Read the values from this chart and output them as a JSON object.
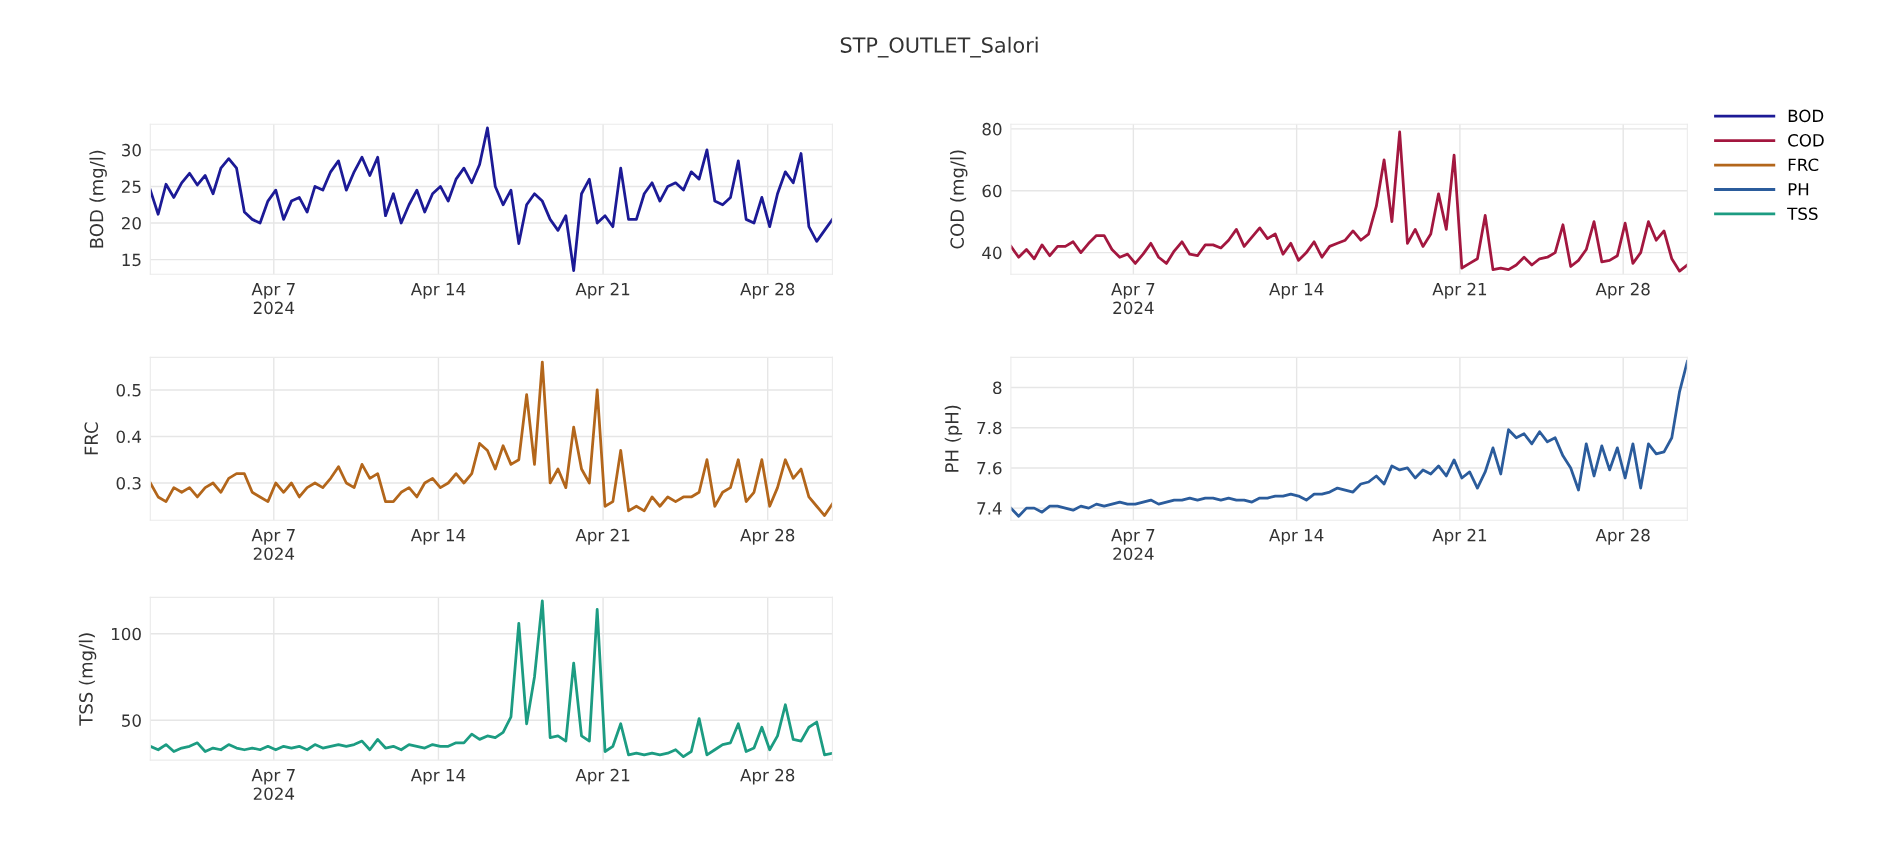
{
  "chart_data": [
    {
      "type": "line",
      "title": "STP_OUTLET_Salori",
      "ylabel": "BOD (mg/l)",
      "grid": true,
      "legend": "right",
      "xlim": [
        "2024-04-01T18:00",
        "2024-04-30T18:00"
      ],
      "xticks": [
        {
          "value": "2024-04-07",
          "label": "Apr 7\n2024"
        },
        {
          "value": "2024-04-14",
          "label": "Apr 14"
        },
        {
          "value": "2024-04-21",
          "label": "Apr 21"
        },
        {
          "value": "2024-04-28",
          "label": "Apr 28"
        }
      ],
      "ylim": [
        13,
        33.5
      ],
      "yticks": [
        15,
        20,
        25,
        30
      ],
      "x": [
        "2024-04-01T18:00",
        "2024-04-02T02:00",
        "2024-04-02T10:00",
        "2024-04-02T18:00",
        "2024-04-03T02:00",
        "2024-04-03T10:00",
        "2024-04-03T18:00",
        "2024-04-04T02:00",
        "2024-04-04T10:00",
        "2024-04-04T18:00",
        "2024-04-05T02:00",
        "2024-04-05T10:00",
        "2024-04-05T18:00",
        "2024-04-06T02:00",
        "2024-04-06T10:00",
        "2024-04-06T18:00",
        "2024-04-07T02:00",
        "2024-04-07T10:00",
        "2024-04-07T18:00",
        "2024-04-08T02:00",
        "2024-04-08T10:00",
        "2024-04-08T18:00",
        "2024-04-09T02:00",
        "2024-04-09T10:00",
        "2024-04-09T18:00",
        "2024-04-10T02:00",
        "2024-04-10T10:00",
        "2024-04-10T18:00",
        "2024-04-11T02:00",
        "2024-04-11T10:00",
        "2024-04-11T18:00",
        "2024-04-12T02:00",
        "2024-04-12T10:00",
        "2024-04-12T18:00",
        "2024-04-13T02:00",
        "2024-04-13T10:00",
        "2024-04-13T18:00",
        "2024-04-14T02:00",
        "2024-04-14T10:00",
        "2024-04-14T18:00",
        "2024-04-15T02:00",
        "2024-04-15T10:00",
        "2024-04-15T18:00",
        "2024-04-16T02:00",
        "2024-04-16T10:00",
        "2024-04-16T18:00",
        "2024-04-17T02:00",
        "2024-04-17T10:00",
        "2024-04-17T18:00",
        "2024-04-18T02:00",
        "2024-04-18T10:00",
        "2024-04-18T18:00",
        "2024-04-19T02:00",
        "2024-04-19T10:00",
        "2024-04-19T18:00",
        "2024-04-20T02:00",
        "2024-04-20T10:00",
        "2024-04-20T18:00",
        "2024-04-21T02:00",
        "2024-04-21T10:00",
        "2024-04-21T18:00",
        "2024-04-22T02:00",
        "2024-04-22T10:00",
        "2024-04-22T18:00",
        "2024-04-23T02:00",
        "2024-04-23T10:00",
        "2024-04-23T18:00",
        "2024-04-24T02:00",
        "2024-04-24T10:00",
        "2024-04-24T18:00",
        "2024-04-25T02:00",
        "2024-04-25T10:00",
        "2024-04-25T18:00",
        "2024-04-26T02:00",
        "2024-04-26T10:00",
        "2024-04-26T18:00",
        "2024-04-27T02:00",
        "2024-04-27T10:00",
        "2024-04-27T18:00",
        "2024-04-28T02:00",
        "2024-04-28T10:00",
        "2024-04-28T18:00",
        "2024-04-29T02:00",
        "2024-04-29T10:00",
        "2024-04-29T18:00",
        "2024-04-30T02:00",
        "2024-04-30T10:00",
        "2024-04-30T18:00"
      ],
      "series": [
        {
          "name": "BOD",
          "color": "#1c1a96",
          "values": [
            24.5,
            21.2,
            25.3,
            23.5,
            25.5,
            26.8,
            25.2,
            26.5,
            24.0,
            27.5,
            28.8,
            27.5,
            21.5,
            20.5,
            20.0,
            23.0,
            24.5,
            20.5,
            23.0,
            23.5,
            21.5,
            25.0,
            24.5,
            27.0,
            28.5,
            24.5,
            27.0,
            29.0,
            26.5,
            29.0,
            21.0,
            24.0,
            20.0,
            22.5,
            24.5,
            21.5,
            24.0,
            25.0,
            23.0,
            26.0,
            27.5,
            25.5,
            28.0,
            33.0,
            25.0,
            22.5,
            24.5,
            17.2,
            22.5,
            24.0,
            23.0,
            20.5,
            19.0,
            21.0,
            13.5,
            24.0,
            26.0,
            20.0,
            21.0,
            19.5,
            27.5,
            20.5,
            20.5,
            24.0,
            25.5,
            23.0,
            25.0,
            25.5,
            24.5,
            27.0,
            26.0,
            30.0,
            23.0,
            22.5,
            23.5,
            28.5,
            20.5,
            20.0,
            23.5,
            19.5,
            24.0,
            27.0,
            25.5,
            29.5,
            19.5,
            17.5,
            19.0,
            20.5
          ]
        }
      ]
    },
    {
      "type": "line",
      "ylabel": "COD (mg/l)",
      "grid": true,
      "legend": "right",
      "xlim": [
        "2024-04-01T18:00",
        "2024-04-30T18:00"
      ],
      "xticks": [
        {
          "value": "2024-04-07",
          "label": "Apr 7\n2024"
        },
        {
          "value": "2024-04-14",
          "label": "Apr 14"
        },
        {
          "value": "2024-04-21",
          "label": "Apr 21"
        },
        {
          "value": "2024-04-28",
          "label": "Apr 28"
        }
      ],
      "ylim": [
        33,
        81.5
      ],
      "yticks": [
        40,
        60,
        80
      ],
      "x": [
        "2024-04-01T18:00",
        "2024-04-02T02:00",
        "2024-04-02T10:00",
        "2024-04-02T18:00",
        "2024-04-03T02:00",
        "2024-04-03T10:00",
        "2024-04-03T18:00",
        "2024-04-04T02:00",
        "2024-04-04T10:00",
        "2024-04-04T18:00",
        "2024-04-05T02:00",
        "2024-04-05T10:00",
        "2024-04-05T18:00",
        "2024-04-06T02:00",
        "2024-04-06T10:00",
        "2024-04-06T18:00",
        "2024-04-07T02:00",
        "2024-04-07T10:00",
        "2024-04-07T18:00",
        "2024-04-08T02:00",
        "2024-04-08T10:00",
        "2024-04-08T18:00",
        "2024-04-09T02:00",
        "2024-04-09T10:00",
        "2024-04-09T18:00",
        "2024-04-10T02:00",
        "2024-04-10T10:00",
        "2024-04-10T18:00",
        "2024-04-11T02:00",
        "2024-04-11T10:00",
        "2024-04-11T18:00",
        "2024-04-12T02:00",
        "2024-04-12T10:00",
        "2024-04-12T18:00",
        "2024-04-13T02:00",
        "2024-04-13T10:00",
        "2024-04-13T18:00",
        "2024-04-14T02:00",
        "2024-04-14T10:00",
        "2024-04-14T18:00",
        "2024-04-15T02:00",
        "2024-04-15T10:00",
        "2024-04-15T18:00",
        "2024-04-16T02:00",
        "2024-04-16T10:00",
        "2024-04-16T18:00",
        "2024-04-17T02:00",
        "2024-04-17T10:00",
        "2024-04-17T18:00",
        "2024-04-18T02:00",
        "2024-04-18T10:00",
        "2024-04-18T18:00",
        "2024-04-19T02:00",
        "2024-04-19T10:00",
        "2024-04-19T18:00",
        "2024-04-20T02:00",
        "2024-04-20T10:00",
        "2024-04-20T18:00",
        "2024-04-21T02:00",
        "2024-04-21T10:00",
        "2024-04-21T18:00",
        "2024-04-22T02:00",
        "2024-04-22T10:00",
        "2024-04-22T18:00",
        "2024-04-23T02:00",
        "2024-04-23T10:00",
        "2024-04-23T18:00",
        "2024-04-24T02:00",
        "2024-04-24T10:00",
        "2024-04-24T18:00",
        "2024-04-25T02:00",
        "2024-04-25T10:00",
        "2024-04-25T18:00",
        "2024-04-26T02:00",
        "2024-04-26T10:00",
        "2024-04-26T18:00",
        "2024-04-27T02:00",
        "2024-04-27T10:00",
        "2024-04-27T18:00",
        "2024-04-28T02:00",
        "2024-04-28T10:00",
        "2024-04-28T18:00",
        "2024-04-29T02:00",
        "2024-04-29T10:00",
        "2024-04-29T18:00",
        "2024-04-30T02:00",
        "2024-04-30T10:00",
        "2024-04-30T18:00"
      ],
      "series": [
        {
          "name": "COD",
          "color": "#a3173f",
          "values": [
            42,
            38.5,
            41,
            38,
            42.5,
            39,
            42,
            42,
            43.5,
            40,
            43,
            45.5,
            45.5,
            41,
            38.5,
            39.5,
            36.5,
            39.5,
            43,
            38.5,
            36.5,
            40.5,
            43.5,
            39.5,
            39,
            42.5,
            42.5,
            41.5,
            44,
            47.5,
            42,
            45,
            48,
            44.5,
            46,
            39.5,
            43,
            37.5,
            40,
            43.5,
            38.5,
            42,
            43,
            44,
            47,
            44,
            46,
            55,
            70,
            50,
            79,
            43,
            47.5,
            42,
            46,
            59,
            47.5,
            71.5,
            35,
            36.5,
            38,
            52,
            34.5,
            35,
            34.5,
            36,
            38.5,
            36,
            38,
            38.5,
            40,
            49,
            35.5,
            37.5,
            41,
            50,
            37,
            37.5,
            39,
            49.5,
            36.5,
            40,
            50,
            44,
            47,
            38,
            34,
            36
          ]
        }
      ]
    },
    {
      "type": "line",
      "ylabel": "FRC",
      "grid": true,
      "legend": "right",
      "xlim": [
        "2024-04-01T18:00",
        "2024-04-30T18:00"
      ],
      "xticks": [
        {
          "value": "2024-04-07",
          "label": "Apr 7\n2024"
        },
        {
          "value": "2024-04-14",
          "label": "Apr 14"
        },
        {
          "value": "2024-04-21",
          "label": "Apr 21"
        },
        {
          "value": "2024-04-28",
          "label": "Apr 28"
        }
      ],
      "ylim": [
        0.22,
        0.57
      ],
      "yticks": [
        0.3,
        0.4,
        0.5
      ],
      "x": [
        "2024-04-01T18:00",
        "2024-04-02T02:00",
        "2024-04-02T10:00",
        "2024-04-02T18:00",
        "2024-04-03T02:00",
        "2024-04-03T10:00",
        "2024-04-03T18:00",
        "2024-04-04T02:00",
        "2024-04-04T10:00",
        "2024-04-04T18:00",
        "2024-04-05T02:00",
        "2024-04-05T10:00",
        "2024-04-05T18:00",
        "2024-04-06T02:00",
        "2024-04-06T10:00",
        "2024-04-06T18:00",
        "2024-04-07T02:00",
        "2024-04-07T10:00",
        "2024-04-07T18:00",
        "2024-04-08T02:00",
        "2024-04-08T10:00",
        "2024-04-08T18:00",
        "2024-04-09T02:00",
        "2024-04-09T10:00",
        "2024-04-09T18:00",
        "2024-04-10T02:00",
        "2024-04-10T10:00",
        "2024-04-10T18:00",
        "2024-04-11T02:00",
        "2024-04-11T10:00",
        "2024-04-11T18:00",
        "2024-04-12T02:00",
        "2024-04-12T10:00",
        "2024-04-12T18:00",
        "2024-04-13T02:00",
        "2024-04-13T10:00",
        "2024-04-13T18:00",
        "2024-04-14T02:00",
        "2024-04-14T10:00",
        "2024-04-14T18:00",
        "2024-04-15T02:00",
        "2024-04-15T10:00",
        "2024-04-15T18:00",
        "2024-04-16T02:00",
        "2024-04-16T10:00",
        "2024-04-16T18:00",
        "2024-04-17T02:00",
        "2024-04-17T10:00",
        "2024-04-17T18:00",
        "2024-04-18T02:00",
        "2024-04-18T10:00",
        "2024-04-18T18:00",
        "2024-04-19T02:00",
        "2024-04-19T10:00",
        "2024-04-19T18:00",
        "2024-04-20T02:00",
        "2024-04-20T10:00",
        "2024-04-20T18:00",
        "2024-04-21T02:00",
        "2024-04-21T10:00",
        "2024-04-21T18:00",
        "2024-04-22T02:00",
        "2024-04-22T10:00",
        "2024-04-22T18:00",
        "2024-04-23T02:00",
        "2024-04-23T10:00",
        "2024-04-23T18:00",
        "2024-04-24T02:00",
        "2024-04-24T10:00",
        "2024-04-24T18:00",
        "2024-04-25T02:00",
        "2024-04-25T10:00",
        "2024-04-25T18:00",
        "2024-04-26T02:00",
        "2024-04-26T10:00",
        "2024-04-26T18:00",
        "2024-04-27T02:00",
        "2024-04-27T10:00",
        "2024-04-27T18:00",
        "2024-04-28T02:00",
        "2024-04-28T10:00",
        "2024-04-28T18:00",
        "2024-04-29T02:00",
        "2024-04-29T10:00",
        "2024-04-29T18:00",
        "2024-04-30T02:00",
        "2024-04-30T10:00",
        "2024-04-30T18:00"
      ],
      "series": [
        {
          "name": "FRC",
          "color": "#b3661b",
          "values": [
            0.3,
            0.27,
            0.26,
            0.29,
            0.28,
            0.29,
            0.27,
            0.29,
            0.3,
            0.28,
            0.31,
            0.32,
            0.32,
            0.28,
            0.27,
            0.26,
            0.3,
            0.28,
            0.3,
            0.27,
            0.29,
            0.3,
            0.29,
            0.31,
            0.335,
            0.3,
            0.29,
            0.34,
            0.31,
            0.32,
            0.26,
            0.26,
            0.28,
            0.29,
            0.27,
            0.3,
            0.31,
            0.29,
            0.3,
            0.32,
            0.3,
            0.32,
            0.385,
            0.37,
            0.33,
            0.38,
            0.34,
            0.35,
            0.49,
            0.34,
            0.56,
            0.3,
            0.33,
            0.29,
            0.42,
            0.33,
            0.3,
            0.5,
            0.25,
            0.26,
            0.37,
            0.24,
            0.25,
            0.24,
            0.27,
            0.25,
            0.27,
            0.26,
            0.27,
            0.27,
            0.28,
            0.35,
            0.25,
            0.28,
            0.29,
            0.35,
            0.26,
            0.28,
            0.35,
            0.25,
            0.29,
            0.35,
            0.31,
            0.33,
            0.27,
            0.25,
            0.23,
            0.255
          ]
        }
      ]
    },
    {
      "type": "line",
      "ylabel": "PH (pH)",
      "grid": true,
      "legend": "right",
      "xlim": [
        "2024-04-01T18:00",
        "2024-04-30T18:00"
      ],
      "xticks": [
        {
          "value": "2024-04-07",
          "label": "Apr 7\n2024"
        },
        {
          "value": "2024-04-14",
          "label": "Apr 14"
        },
        {
          "value": "2024-04-21",
          "label": "Apr 21"
        },
        {
          "value": "2024-04-28",
          "label": "Apr 28"
        }
      ],
      "ylim": [
        7.34,
        8.15
      ],
      "yticks": [
        7.4,
        7.6,
        7.8,
        8
      ],
      "x": [
        "2024-04-01T18:00",
        "2024-04-02T02:00",
        "2024-04-02T10:00",
        "2024-04-02T18:00",
        "2024-04-03T02:00",
        "2024-04-03T10:00",
        "2024-04-03T18:00",
        "2024-04-04T02:00",
        "2024-04-04T10:00",
        "2024-04-04T18:00",
        "2024-04-05T02:00",
        "2024-04-05T10:00",
        "2024-04-05T18:00",
        "2024-04-06T02:00",
        "2024-04-06T10:00",
        "2024-04-06T18:00",
        "2024-04-07T02:00",
        "2024-04-07T10:00",
        "2024-04-07T18:00",
        "2024-04-08T02:00",
        "2024-04-08T10:00",
        "2024-04-08T18:00",
        "2024-04-09T02:00",
        "2024-04-09T10:00",
        "2024-04-09T18:00",
        "2024-04-10T02:00",
        "2024-04-10T10:00",
        "2024-04-10T18:00",
        "2024-04-11T02:00",
        "2024-04-11T10:00",
        "2024-04-11T18:00",
        "2024-04-12T02:00",
        "2024-04-12T10:00",
        "2024-04-12T18:00",
        "2024-04-13T02:00",
        "2024-04-13T10:00",
        "2024-04-13T18:00",
        "2024-04-14T02:00",
        "2024-04-14T10:00",
        "2024-04-14T18:00",
        "2024-04-15T02:00",
        "2024-04-15T10:00",
        "2024-04-15T18:00",
        "2024-04-16T02:00",
        "2024-04-16T10:00",
        "2024-04-16T18:00",
        "2024-04-17T02:00",
        "2024-04-17T10:00",
        "2024-04-17T18:00",
        "2024-04-18T02:00",
        "2024-04-18T10:00",
        "2024-04-18T18:00",
        "2024-04-19T02:00",
        "2024-04-19T10:00",
        "2024-04-19T18:00",
        "2024-04-20T02:00",
        "2024-04-20T10:00",
        "2024-04-20T18:00",
        "2024-04-21T02:00",
        "2024-04-21T10:00",
        "2024-04-21T18:00",
        "2024-04-22T02:00",
        "2024-04-22T10:00",
        "2024-04-22T18:00",
        "2024-04-23T02:00",
        "2024-04-23T10:00",
        "2024-04-23T18:00",
        "2024-04-24T02:00",
        "2024-04-24T10:00",
        "2024-04-24T18:00",
        "2024-04-25T02:00",
        "2024-04-25T10:00",
        "2024-04-25T18:00",
        "2024-04-26T02:00",
        "2024-04-26T10:00",
        "2024-04-26T18:00",
        "2024-04-27T02:00",
        "2024-04-27T10:00",
        "2024-04-27T18:00",
        "2024-04-28T02:00",
        "2024-04-28T10:00",
        "2024-04-28T18:00",
        "2024-04-29T02:00",
        "2024-04-29T10:00",
        "2024-04-29T18:00",
        "2024-04-30T02:00",
        "2024-04-30T10:00",
        "2024-04-30T18:00"
      ],
      "series": [
        {
          "name": "PH",
          "color": "#2b5c9c",
          "values": [
            7.4,
            7.36,
            7.4,
            7.4,
            7.38,
            7.41,
            7.41,
            7.4,
            7.39,
            7.41,
            7.4,
            7.42,
            7.41,
            7.42,
            7.43,
            7.42,
            7.42,
            7.43,
            7.44,
            7.42,
            7.43,
            7.44,
            7.44,
            7.45,
            7.44,
            7.45,
            7.45,
            7.44,
            7.45,
            7.44,
            7.44,
            7.43,
            7.45,
            7.45,
            7.46,
            7.46,
            7.47,
            7.46,
            7.44,
            7.47,
            7.47,
            7.48,
            7.5,
            7.49,
            7.48,
            7.52,
            7.53,
            7.56,
            7.52,
            7.61,
            7.59,
            7.6,
            7.55,
            7.59,
            7.57,
            7.61,
            7.56,
            7.64,
            7.55,
            7.58,
            7.5,
            7.58,
            7.7,
            7.57,
            7.79,
            7.75,
            7.77,
            7.72,
            7.78,
            7.73,
            7.75,
            7.66,
            7.6,
            7.49,
            7.72,
            7.56,
            7.71,
            7.59,
            7.7,
            7.55,
            7.72,
            7.5,
            7.72,
            7.67,
            7.68,
            7.75,
            7.98,
            8.13
          ]
        }
      ]
    },
    {
      "type": "line",
      "ylabel": "TSS (mg/l)",
      "grid": true,
      "legend": "right",
      "xlim": [
        "2024-04-01T18:00",
        "2024-04-30T18:00"
      ],
      "xticks": [
        {
          "value": "2024-04-07",
          "label": "Apr 7\n2024"
        },
        {
          "value": "2024-04-14",
          "label": "Apr 14"
        },
        {
          "value": "2024-04-21",
          "label": "Apr 21"
        },
        {
          "value": "2024-04-28",
          "label": "Apr 28"
        }
      ],
      "ylim": [
        27,
        121
      ],
      "yticks": [
        50,
        100
      ],
      "x": [
        "2024-04-01T18:00",
        "2024-04-02T02:00",
        "2024-04-02T10:00",
        "2024-04-02T18:00",
        "2024-04-03T02:00",
        "2024-04-03T10:00",
        "2024-04-03T18:00",
        "2024-04-04T02:00",
        "2024-04-04T10:00",
        "2024-04-04T18:00",
        "2024-04-05T02:00",
        "2024-04-05T10:00",
        "2024-04-05T18:00",
        "2024-04-06T02:00",
        "2024-04-06T10:00",
        "2024-04-06T18:00",
        "2024-04-07T02:00",
        "2024-04-07T10:00",
        "2024-04-07T18:00",
        "2024-04-08T02:00",
        "2024-04-08T10:00",
        "2024-04-08T18:00",
        "2024-04-09T02:00",
        "2024-04-09T10:00",
        "2024-04-09T18:00",
        "2024-04-10T02:00",
        "2024-04-10T10:00",
        "2024-04-10T18:00",
        "2024-04-11T02:00",
        "2024-04-11T10:00",
        "2024-04-11T18:00",
        "2024-04-12T02:00",
        "2024-04-12T10:00",
        "2024-04-12T18:00",
        "2024-04-13T02:00",
        "2024-04-13T10:00",
        "2024-04-13T18:00",
        "2024-04-14T02:00",
        "2024-04-14T10:00",
        "2024-04-14T18:00",
        "2024-04-15T02:00",
        "2024-04-15T10:00",
        "2024-04-15T18:00",
        "2024-04-16T02:00",
        "2024-04-16T10:00",
        "2024-04-16T18:00",
        "2024-04-17T02:00",
        "2024-04-17T10:00",
        "2024-04-17T18:00",
        "2024-04-18T02:00",
        "2024-04-18T10:00",
        "2024-04-18T18:00",
        "2024-04-19T02:00",
        "2024-04-19T10:00",
        "2024-04-19T18:00",
        "2024-04-20T02:00",
        "2024-04-20T10:00",
        "2024-04-20T18:00",
        "2024-04-21T02:00",
        "2024-04-21T10:00",
        "2024-04-21T18:00",
        "2024-04-22T02:00",
        "2024-04-22T10:00",
        "2024-04-22T18:00",
        "2024-04-23T02:00",
        "2024-04-23T10:00",
        "2024-04-23T18:00",
        "2024-04-24T02:00",
        "2024-04-24T10:00",
        "2024-04-24T18:00",
        "2024-04-25T02:00",
        "2024-04-25T10:00",
        "2024-04-25T18:00",
        "2024-04-26T02:00",
        "2024-04-26T10:00",
        "2024-04-26T18:00",
        "2024-04-27T02:00",
        "2024-04-27T10:00",
        "2024-04-27T18:00",
        "2024-04-28T02:00",
        "2024-04-28T10:00",
        "2024-04-28T18:00",
        "2024-04-29T02:00",
        "2024-04-29T10:00",
        "2024-04-29T18:00",
        "2024-04-30T02:00",
        "2024-04-30T10:00",
        "2024-04-30T18:00"
      ],
      "series": [
        {
          "name": "TSS",
          "color": "#1c9c82",
          "values": [
            35,
            33,
            36,
            32,
            34,
            35,
            37,
            32,
            34,
            33,
            36,
            34,
            33,
            34,
            33,
            35,
            33,
            35,
            34,
            35,
            33,
            36,
            34,
            35,
            36,
            35,
            36,
            38,
            33,
            39,
            34,
            35,
            33,
            36,
            35,
            34,
            36,
            35,
            35,
            37,
            37,
            42,
            39,
            41,
            40,
            43,
            52,
            106,
            48,
            75,
            119,
            40,
            41,
            38,
            83,
            41,
            38,
            114,
            32,
            35,
            48,
            30,
            31,
            30,
            31,
            30,
            31,
            33,
            29,
            32,
            51,
            30,
            33,
            36,
            37,
            48,
            32,
            34,
            46,
            33,
            41,
            59,
            39,
            38,
            46,
            49,
            30,
            31
          ]
        }
      ]
    }
  ]
}
